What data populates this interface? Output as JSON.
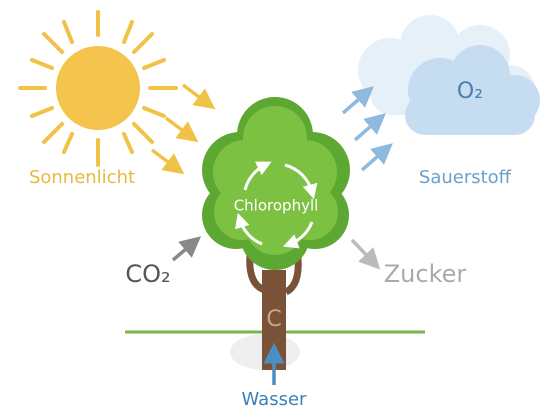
{
  "labels": {
    "sun": "Sonnenlicht",
    "oxygen": "Sauerstoff",
    "oxygen_formula": "O₂",
    "chlorophyll": "Chlorophyll",
    "co2": "CO₂",
    "sugar": "Zucker",
    "trunk": "C",
    "water": "Wasser"
  }
}
